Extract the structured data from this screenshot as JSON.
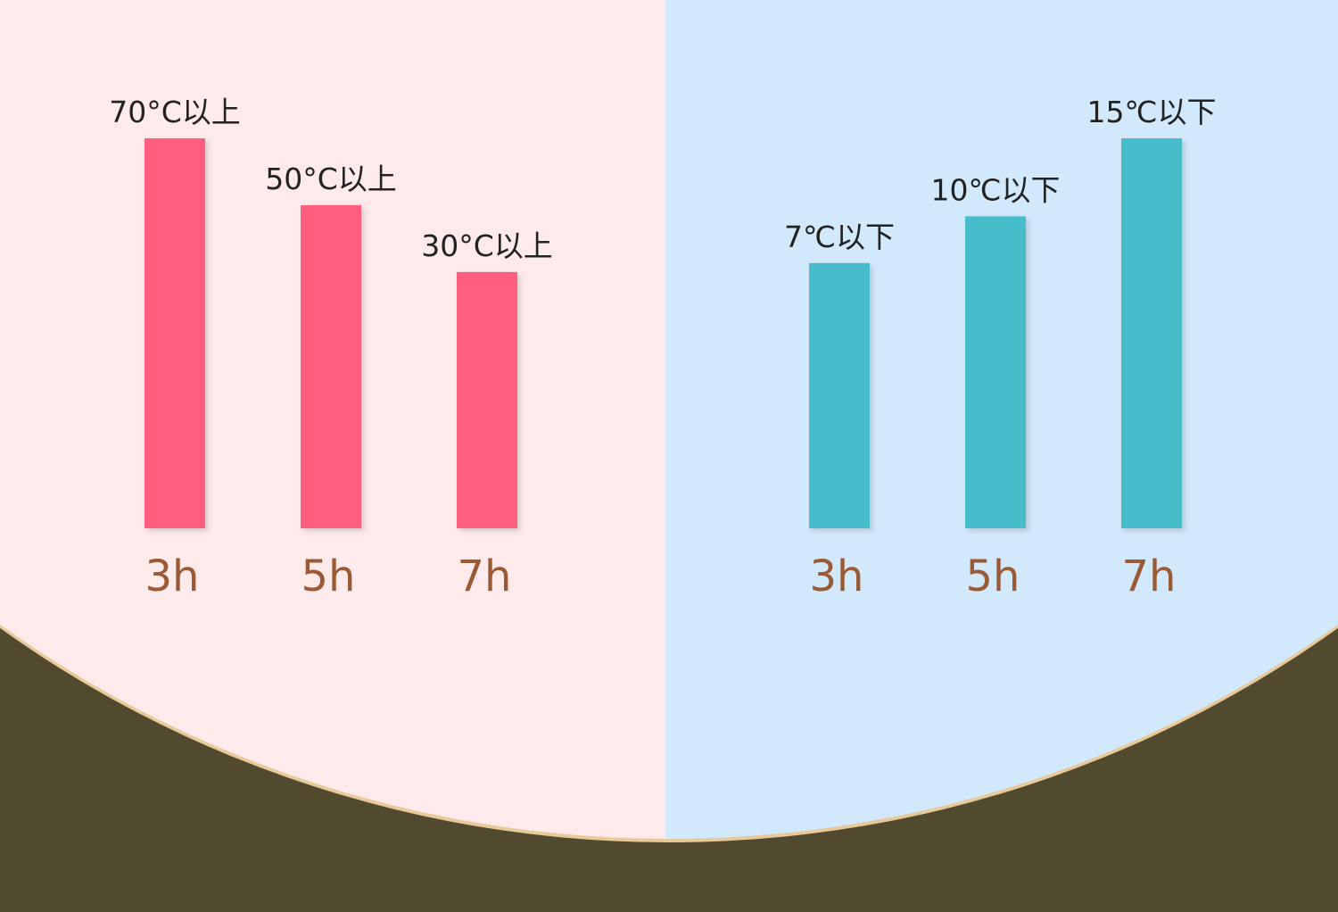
{
  "chart_data": [
    {
      "type": "bar",
      "categories": [
        "3h",
        "5h",
        "7h"
      ],
      "values": [
        70,
        50,
        30
      ],
      "value_labels": [
        "70°C以上",
        "50°C以上",
        "30°C以上"
      ],
      "color": "#ff5f7e"
    },
    {
      "type": "bar",
      "categories": [
        "3h",
        "5h",
        "7h"
      ],
      "values": [
        7,
        10,
        15
      ],
      "value_labels": [
        "7℃以下",
        "10℃以下",
        "15℃以下"
      ],
      "color": "#47bccb"
    }
  ]
}
